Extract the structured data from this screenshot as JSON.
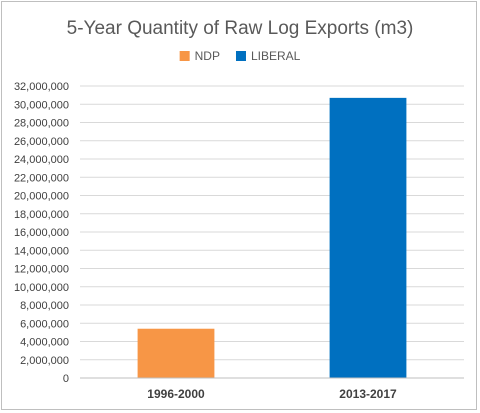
{
  "chart_data": {
    "type": "bar",
    "title": "5-Year Quantity of Raw Log Exports (m3)",
    "categories": [
      "1996-2000",
      "2013-2017"
    ],
    "series": [
      {
        "name": "NDP",
        "color": "#F79646",
        "values": [
          5400000,
          null
        ]
      },
      {
        "name": "LIBERAL",
        "color": "#0070C0",
        "values": [
          null,
          30700000
        ]
      }
    ],
    "ylim": [
      0,
      32000000
    ],
    "ytick_step": 2000000,
    "ytick_labels": [
      "0",
      "2,000,000",
      "4,000,000",
      "6,000,000",
      "8,000,000",
      "10,000,000",
      "12,000,000",
      "14,000,000",
      "16,000,000",
      "18,000,000",
      "20,000,000",
      "22,000,000",
      "24,000,000",
      "26,000,000",
      "28,000,000",
      "30,000,000",
      "32,000,000"
    ],
    "grid": true,
    "legend_position": "top-center",
    "xlabel": "",
    "ylabel": ""
  }
}
